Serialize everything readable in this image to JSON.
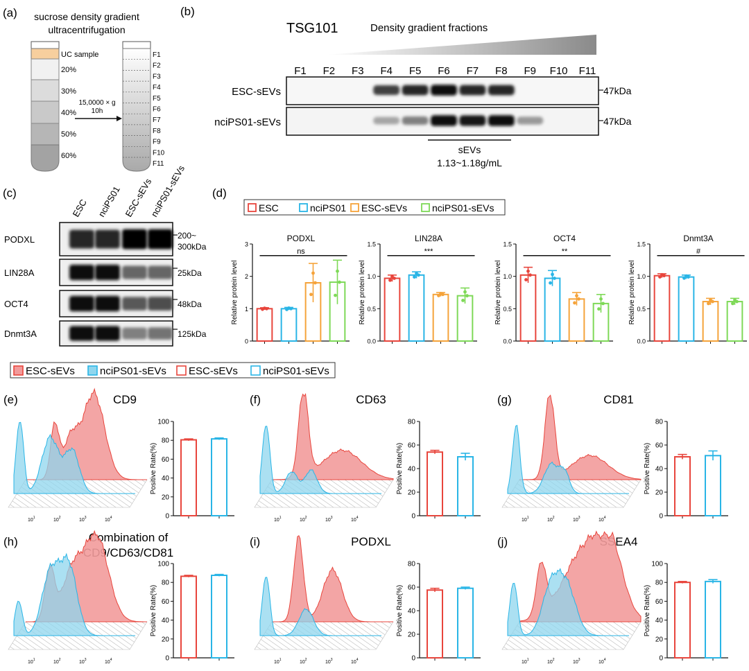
{
  "panel_a": {
    "letter": "(a)",
    "title_line1": "sucrose density gradient",
    "title_line2": "ultracentrifugation",
    "layers": [
      "UC  sample",
      "20%",
      "30%",
      "40%",
      "50%",
      "60%"
    ],
    "spin_line1": "15,0000 × g",
    "spin_line2": "10h",
    "fractions": [
      "F1",
      "F2",
      "F3",
      "F4",
      "F5",
      "F6",
      "F7",
      "F8",
      "F9",
      "F10",
      "F11"
    ]
  },
  "panel_b": {
    "letter": "(b)",
    "protein": "TSG101",
    "gradient_label": "Density gradient fractions",
    "fractions": [
      "F1",
      "F2",
      "F3",
      "F4",
      "F5",
      "F6",
      "F7",
      "F8",
      "F9",
      "F10",
      "F11"
    ],
    "rows": [
      "ESC-sEVs",
      "nciPS01-sEVs"
    ],
    "mw": [
      "47kDa",
      "47kDa"
    ],
    "bracket_label": "sEVs",
    "bracket_density": "1.13~1.18g/mL",
    "band_intensity_esc": [
      0,
      0,
      0,
      0.75,
      0.85,
      0.95,
      0.85,
      0.85,
      0,
      0,
      0
    ],
    "band_intensity_ncips": [
      0,
      0,
      0,
      0.35,
      0.5,
      0.95,
      0.9,
      0.95,
      0.4,
      0,
      0
    ]
  },
  "panel_c": {
    "letter": "(c)",
    "lanes": [
      "ESC",
      "nciPS01",
      "ESC-sEVs",
      "nciPS01-sEVs"
    ],
    "rows": [
      {
        "name": "PODXL",
        "mw1": "200~",
        "mw2": "300kDa"
      },
      {
        "name": "LIN28A",
        "mw1": "25kDa",
        "mw2": ""
      },
      {
        "name": "OCT4",
        "mw1": "48kDa",
        "mw2": ""
      },
      {
        "name": "Dnmt3A",
        "mw1": "125kDa",
        "mw2": ""
      }
    ]
  },
  "panel_d": {
    "letter": "(d)",
    "legend": [
      "ESC",
      "nciPS01",
      "ESC-sEVs",
      "nciPS01-sEVs"
    ]
  },
  "flow_legend": {
    "items": [
      "ESC-sEVs",
      "nciPS01-sEVs",
      "ESC-sEVs",
      "nciPS01-sEVs"
    ]
  },
  "flow_panels": [
    {
      "letter": "(e)",
      "title1": "CD9",
      "title2": ""
    },
    {
      "letter": "(f)",
      "title1": "CD63",
      "title2": ""
    },
    {
      "letter": "(g)",
      "title1": "CD81",
      "title2": ""
    },
    {
      "letter": "(h)",
      "title1": "Combination of",
      "title2": "CD9/CD63/CD81"
    },
    {
      "letter": "(i)",
      "title1": "PODXL",
      "title2": ""
    },
    {
      "letter": "(j)",
      "title1": "SSEA4",
      "title2": ""
    }
  ],
  "colors": {
    "esc": "#e8453c",
    "ncips": "#29b5e6",
    "esc_sevs": "#f5a33a",
    "ncips_sevs": "#7ed957",
    "esc_fill": "#f29b9b",
    "ncips_fill": "#8fd6ee"
  },
  "chart_data": [
    {
      "type": "bar",
      "title": "PODXL",
      "ylabel": "Relative protein level",
      "ylim": [
        0,
        3
      ],
      "yticks": [
        "0",
        "1",
        "2",
        "3"
      ],
      "significance": "ns",
      "categories": [
        "ESC",
        "nciPS01",
        "ESC-sEVs",
        "nciPS01-sEVs"
      ],
      "values": [
        1.0,
        1.0,
        1.8,
        1.82
      ],
      "errors": [
        0.03,
        0.04,
        0.6,
        0.68
      ]
    },
    {
      "type": "bar",
      "title": "LIN28A",
      "ylabel": "Relative protein level",
      "ylim": [
        0,
        1.5
      ],
      "yticks": [
        "0.0",
        "0.5",
        "1.0",
        "1.5"
      ],
      "significance": "***",
      "categories": [
        "ESC",
        "nciPS01",
        "ESC-sEVs",
        "nciPS01-sEVs"
      ],
      "values": [
        0.97,
        1.02,
        0.72,
        0.7
      ],
      "errors": [
        0.05,
        0.05,
        0.03,
        0.12
      ]
    },
    {
      "type": "bar",
      "title": "OCT4",
      "ylabel": "Relative protein level",
      "ylim": [
        0,
        1.5
      ],
      "yticks": [
        "0.0",
        "0.5",
        "1.0",
        "1.5"
      ],
      "significance": "**",
      "categories": [
        "ESC",
        "nciPS01",
        "ESC-sEVs",
        "nciPS01-sEVs"
      ],
      "values": [
        1.02,
        0.97,
        0.65,
        0.58
      ],
      "errors": [
        0.12,
        0.12,
        0.1,
        0.14
      ]
    },
    {
      "type": "bar",
      "title": "Dnmt3A",
      "ylabel": "Relative protein level",
      "ylim": [
        0,
        1.5
      ],
      "yticks": [
        "0.0",
        "0.5",
        "1.0",
        "1.5"
      ],
      "significance": "#",
      "categories": [
        "ESC",
        "nciPS01",
        "ESC-sEVs",
        "nciPS01-sEVs"
      ],
      "values": [
        1.01,
        0.99,
        0.61,
        0.61
      ],
      "errors": [
        0.03,
        0.03,
        0.05,
        0.05
      ]
    },
    {
      "type": "bar",
      "ylabel": "Positive Rate(%)",
      "ylim": [
        0,
        100
      ],
      "yticks": [
        "0",
        "20",
        "40",
        "60",
        "80",
        "100"
      ],
      "categories": [
        "ESC-sEVs",
        "nciPS01-sEVs"
      ],
      "values": [
        80.5,
        81.5
      ],
      "errors": [
        1,
        1
      ]
    },
    {
      "type": "bar",
      "ylabel": "Positive Rate(%)",
      "ylim": [
        0,
        80
      ],
      "yticks": [
        "0",
        "20",
        "40",
        "60",
        "80"
      ],
      "categories": [
        "ESC-sEVs",
        "nciPS01-sEVs"
      ],
      "values": [
        54,
        50
      ],
      "errors": [
        1.5,
        3
      ]
    },
    {
      "type": "bar",
      "ylabel": "Positive Rate(%)",
      "ylim": [
        0,
        80
      ],
      "yticks": [
        "0",
        "20",
        "40",
        "60",
        "80"
      ],
      "categories": [
        "ESC-sEVs",
        "nciPS01-sEVs"
      ],
      "values": [
        50,
        51
      ],
      "errors": [
        2,
        4
      ]
    },
    {
      "type": "bar",
      "ylabel": "Positive Rate(%)",
      "ylim": [
        0,
        100
      ],
      "yticks": [
        "0",
        "20",
        "40",
        "60",
        "80",
        "100"
      ],
      "categories": [
        "ESC-sEVs",
        "nciPS01-sEVs"
      ],
      "values": [
        86.5,
        87.5
      ],
      "errors": [
        1,
        1
      ]
    },
    {
      "type": "bar",
      "ylabel": "Positive Rate(%)",
      "ylim": [
        0,
        80
      ],
      "yticks": [
        "0",
        "20",
        "40",
        "60",
        "80"
      ],
      "categories": [
        "ESC-sEVs",
        "nciPS01-sEVs"
      ],
      "values": [
        57.5,
        59
      ],
      "errors": [
        1.5,
        1
      ]
    },
    {
      "type": "bar",
      "ylabel": "Positive Rate(%)",
      "ylim": [
        0,
        100
      ],
      "yticks": [
        "0",
        "20",
        "40",
        "60",
        "80",
        "100"
      ],
      "categories": [
        "ESC-sEVs",
        "nciPS01-sEVs"
      ],
      "values": [
        80,
        81
      ],
      "errors": [
        1,
        2
      ]
    }
  ]
}
